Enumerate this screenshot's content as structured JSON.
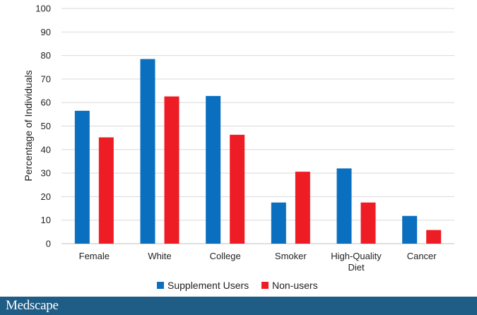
{
  "chart_data": {
    "type": "bar",
    "title": "",
    "xlabel": "",
    "ylabel": "Percentage of Individuals",
    "ylim": [
      0,
      100
    ],
    "yticks": [
      "0",
      "10",
      "20",
      "30",
      "40",
      "50",
      "60",
      "70",
      "80",
      "90",
      "100"
    ],
    "categories": [
      [
        "Female"
      ],
      [
        "White"
      ],
      [
        "College"
      ],
      [
        "Smoker"
      ],
      [
        "High-Quality",
        "Diet"
      ],
      [
        "Cancer"
      ]
    ],
    "series": [
      {
        "name": "Supplement Users",
        "color": "#0a6fbf",
        "values": [
          56.5,
          78.5,
          62.8,
          17.5,
          32,
          11.8
        ]
      },
      {
        "name": "Non-users",
        "color": "#ee1c24",
        "values": [
          45.2,
          62.6,
          46.3,
          30.6,
          17.5,
          5.8
        ]
      }
    ],
    "grid": true,
    "legend_position": "bottom"
  },
  "colors": {
    "gridline": "#d9d9d9",
    "axis": "#bfbfbf",
    "footer": "#1f5d86"
  },
  "footer": {
    "brand": "Medscape"
  }
}
